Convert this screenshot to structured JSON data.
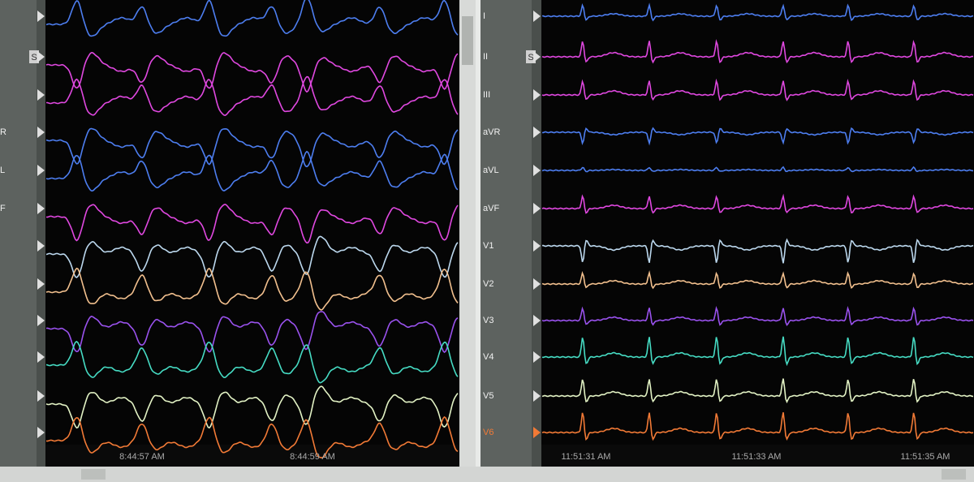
{
  "left_panel": {
    "s_button": "S",
    "lead_labels": [
      "R",
      "L",
      "F"
    ],
    "times": [
      "8:44:57 AM",
      "8:44:59 AM"
    ]
  },
  "right_panel": {
    "s_button": "S",
    "lead_labels": [
      "I",
      "II",
      "III",
      "aVR",
      "aVL",
      "aVF",
      "V1",
      "V2",
      "V3",
      "V4",
      "V5",
      "V6"
    ],
    "times": [
      "11:51:31 AM",
      "11:51:33 AM",
      "11:51:35 AM"
    ]
  }
}
